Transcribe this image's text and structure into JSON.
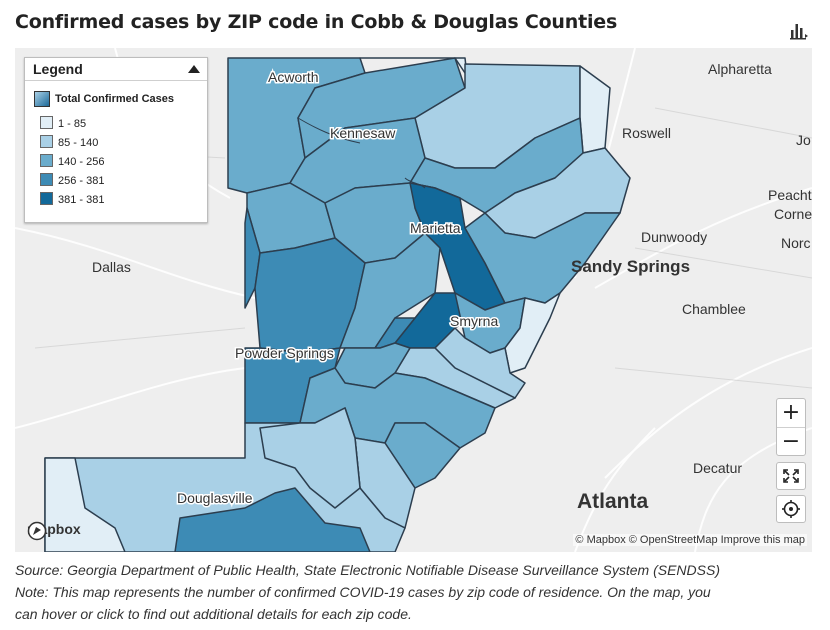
{
  "title": "Confirmed cases by ZIP code in Cobb & Douglas Counties",
  "legend": {
    "header": "Legend",
    "layer_title": "Total Confirmed Cases",
    "items": [
      {
        "label": "1 - 85",
        "color": "#e1eef6"
      },
      {
        "label": "85 - 140",
        "color": "#a9d0e6"
      },
      {
        "label": "140 - 256",
        "color": "#6aaccc"
      },
      {
        "label": "256 - 381",
        "color": "#3d8bb5"
      },
      {
        "label": "381 - 381",
        "color": "#12699a"
      }
    ]
  },
  "places": {
    "acworth": "Acworth",
    "kennesaw": "Kennesaw",
    "marietta": "Marietta",
    "smyrna": "Smyrna",
    "powder_springs": "Powder Springs",
    "douglasville": "Douglasville",
    "dallas": "Dallas",
    "alpharetta": "Alpharetta",
    "roswell": "Roswell",
    "jo": "Jo",
    "peachtree_corners_1": "Peacht",
    "peachtree_corners_2": "Corne",
    "norcross": "Norc",
    "dunwoody": "Dunwoody",
    "sandy_springs": "Sandy Springs",
    "chamblee": "Chamblee",
    "decatur": "Decatur",
    "atlanta": "Atlanta"
  },
  "controls": {
    "zoom_in": "+",
    "zoom_out": "−"
  },
  "attribution": "© Mapbox © OpenStreetMap  Improve this map",
  "mapbox_logo": "mapbox",
  "source_line": "Source: Georgia Department of Public Health, State Electronic Notifiable Disease Surveillance System (SENDSS)",
  "note_line1": "Note: This map represents the number of confirmed COVID-19 cases by zip code of residence.  On the map, you",
  "note_line2": "can hover or click to find out additional details for each zip code."
}
